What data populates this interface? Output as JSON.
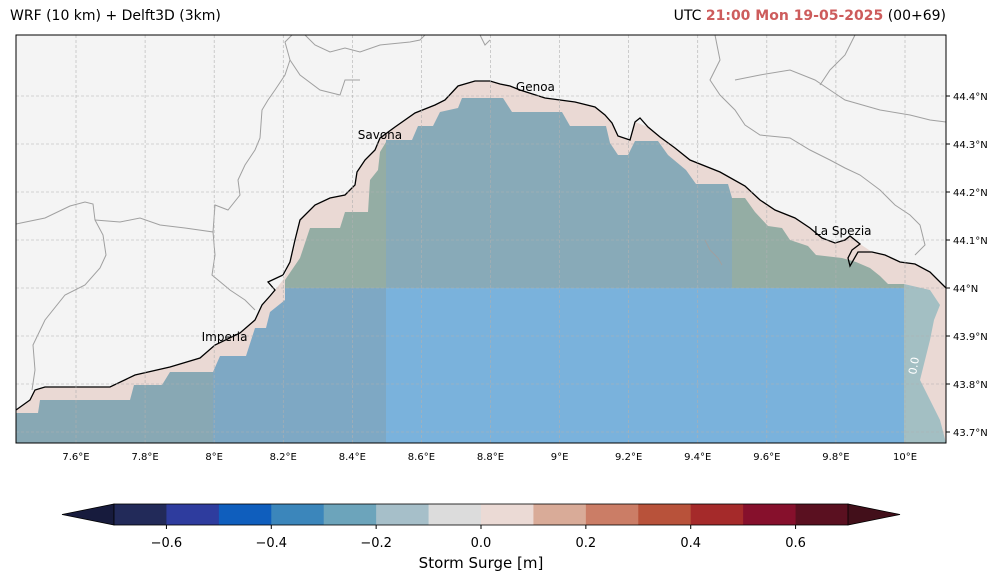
{
  "header": {
    "title_left": "WRF (10 km) + Delft3D (3km)",
    "utc_label": "UTC",
    "time": "21:00 Mon 19-05-2025",
    "run": "(00+69)",
    "time_color": "#cd5c5c"
  },
  "map": {
    "lon_range": [
      7.44,
      10.12
    ],
    "lat_range": [
      43.67,
      44.52
    ],
    "lon_ticks": [
      {
        "value": 7.6,
        "label": "7.6°E"
      },
      {
        "value": 7.8,
        "label": "7.8°E"
      },
      {
        "value": 8.0,
        "label": "8°E"
      },
      {
        "value": 8.2,
        "label": "8.2°E"
      },
      {
        "value": 8.4,
        "label": "8.4°E"
      },
      {
        "value": 8.6,
        "label": "8.6°E"
      },
      {
        "value": 8.8,
        "label": "8.8°E"
      },
      {
        "value": 9.0,
        "label": "9°E"
      },
      {
        "value": 9.2,
        "label": "9.2°E"
      },
      {
        "value": 9.4,
        "label": "9.4°E"
      },
      {
        "value": 9.6,
        "label": "9.6°E"
      },
      {
        "value": 9.8,
        "label": "9.8°E"
      },
      {
        "value": 10.0,
        "label": "10°E"
      }
    ],
    "lat_ticks": [
      {
        "value": 43.7,
        "label": "43.7°N"
      },
      {
        "value": 43.8,
        "label": "43.8°N"
      },
      {
        "value": 43.9,
        "label": "43.9°N"
      },
      {
        "value": 44.0,
        "label": "44°N"
      },
      {
        "value": 44.1,
        "label": "44.1°N"
      },
      {
        "value": 44.2,
        "label": "44.2°N"
      },
      {
        "value": 44.3,
        "label": "44.3°N"
      },
      {
        "value": 44.4,
        "label": "44.4°N"
      }
    ],
    "cities": [
      {
        "name": "Genoa",
        "lon": 8.93,
        "lat": 44.41
      },
      {
        "name": "Savona",
        "lon": 8.48,
        "lat": 44.31
      },
      {
        "name": "La Spezia",
        "lon": 9.82,
        "lat": 44.11
      },
      {
        "name": "Imperia",
        "lon": 8.03,
        "lat": 43.89
      }
    ],
    "contour_label": "0.0",
    "colors": {
      "land": "#f4f4f4",
      "coastal_band": "#ead9d4",
      "sea_north": "#88aab8",
      "sea_green": "#94ada4",
      "sea_south": "#7aaed8",
      "coastline": "#000000",
      "borders": "#a0a0a0",
      "grid": "#b0b0b0"
    }
  },
  "colorbar": {
    "label": "Storm Surge [m]",
    "tick_labels": [
      "−0.6",
      "−0.4",
      "−0.2",
      "0.0",
      "0.2",
      "0.4",
      "0.6"
    ],
    "tick_values": [
      -0.6,
      -0.4,
      -0.2,
      0.0,
      0.2,
      0.4,
      0.6
    ],
    "range": [
      -0.7,
      0.7
    ],
    "under_color": "#171b3d",
    "over_color": "#420f1a",
    "colors": [
      "#222a59",
      "#2e3c9e",
      "#0f5ebd",
      "#3b86bb",
      "#6ca4bb",
      "#a6bfc9",
      "#dcdcdc",
      "#ebdad5",
      "#d9ab98",
      "#cb7d66",
      "#b8523a",
      "#a52a2a",
      "#86102c",
      "#5a1020"
    ]
  }
}
